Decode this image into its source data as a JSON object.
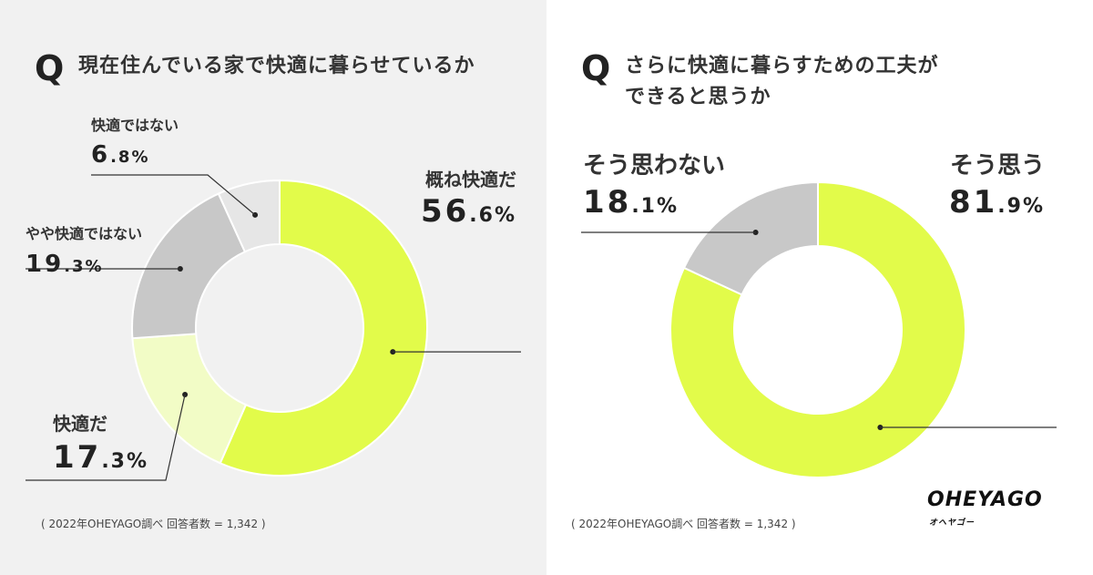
{
  "chart_data": [
    {
      "type": "pie",
      "question_mark": "Q",
      "title": "現在住んでいる家で快適に暮らせているか",
      "slices": [
        {
          "label": "概ね快適だ",
          "value": 56.6,
          "int": "56",
          "dec": ".6%",
          "color": "#e2fb4a"
        },
        {
          "label": "快適だ",
          "value": 17.3,
          "int": "17",
          "dec": ".3%",
          "color": "#f2fcc6"
        },
        {
          "label": "やや快適ではない",
          "value": 19.3,
          "int": "19",
          "dec": ".3%",
          "color": "#c8c8c8"
        },
        {
          "label": "快適ではない",
          "value": 6.8,
          "int": "6",
          "dec": ".8%",
          "color": "#e6e6e6"
        }
      ],
      "footnote": "( 2022年OHEYAGO調べ 回答者数 = 1,342 )"
    },
    {
      "type": "pie",
      "question_mark": "Q",
      "title_lines": [
        "さらに快適に暮らすための工夫が",
        "できると思うか"
      ],
      "slices": [
        {
          "label": "そう思う",
          "value": 81.9,
          "int": "81",
          "dec": ".9%",
          "color": "#e2fb4a"
        },
        {
          "label": "そう思わない",
          "value": 18.1,
          "int": "18",
          "dec": ".1%",
          "color": "#c8c8c8"
        }
      ],
      "footnote": "( 2022年OHEYAGO調べ 回答者数 = 1,342 )"
    }
  ],
  "logo": {
    "main": "OHEYAGO",
    "sub": "オヘヤゴー"
  },
  "colors": {
    "lime": "#e2fb4a",
    "pale_lime": "#f2fcc6",
    "gray": "#c8c8c8",
    "light_gray": "#e6e6e6"
  }
}
